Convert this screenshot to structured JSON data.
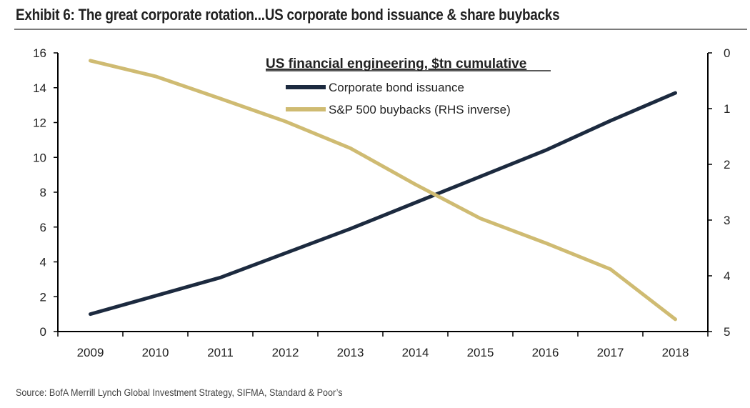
{
  "title": "Exhibit 6: The great corporate rotation...US corporate bond issuance & share buybacks",
  "source": "Source:  BofA Merrill Lynch Global Investment Strategy, SIFMA, Standard & Poor’s",
  "chart_data": {
    "type": "line",
    "title": "US financial engineering, $tn cumulative",
    "categories": [
      "2009",
      "2010",
      "2011",
      "2012",
      "2013",
      "2014",
      "2015",
      "2016",
      "2017",
      "2018"
    ],
    "y_left": {
      "range": [
        0,
        16
      ],
      "ticks": [
        "0",
        "2",
        "4",
        "6",
        "8",
        "10",
        "12",
        "14",
        "16"
      ]
    },
    "y_right": {
      "range": [
        0,
        5
      ],
      "inverted": true,
      "ticks": [
        "0",
        "1",
        "2",
        "3",
        "4",
        "5"
      ]
    },
    "legend_position": "top-center",
    "series": [
      {
        "name": "Corporate bond issuance",
        "axis": "left",
        "color": "#1c2a3f",
        "values": [
          1.0,
          2.05,
          3.1,
          4.5,
          5.9,
          7.4,
          8.9,
          10.4,
          12.1,
          13.7
        ]
      },
      {
        "name": "S&P 500 buybacks (RHS inverse)",
        "axis": "right",
        "color": "#cfbb72",
        "values": [
          0.14,
          0.42,
          0.82,
          1.23,
          1.71,
          2.36,
          2.97,
          3.41,
          3.88,
          4.78
        ]
      }
    ]
  }
}
